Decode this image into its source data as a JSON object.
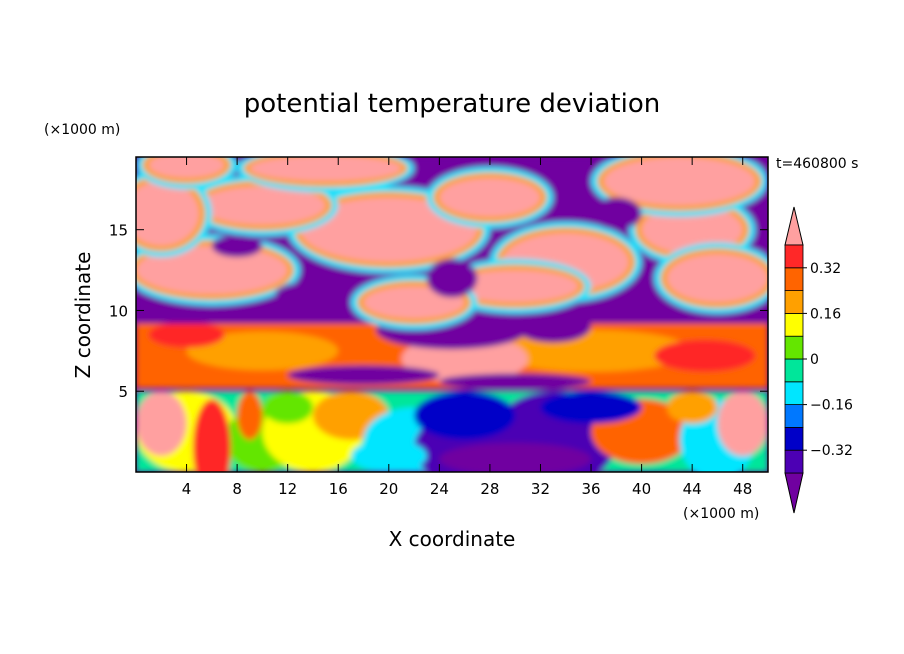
{
  "chart_data": {
    "type": "heatmap",
    "title": "potential temperature deviation",
    "xlabel": "X coordinate",
    "ylabel": "Z coordinate",
    "x_unit": "(×1000 m)",
    "y_unit": "(×1000 m)",
    "time_label": "t=460800 s",
    "xlim": [
      0,
      50
    ],
    "ylim": [
      0,
      19.5
    ],
    "x_ticks": [
      4,
      8,
      12,
      16,
      20,
      24,
      28,
      32,
      36,
      40,
      44,
      48
    ],
    "y_ticks": [
      5,
      10,
      15
    ],
    "colorbar": {
      "levels": [
        -0.4,
        -0.32,
        -0.24,
        -0.16,
        -0.08,
        0,
        0.08,
        0.16,
        0.24,
        0.32,
        0.4
      ],
      "labels": [
        "0.32",
        "0.16",
        "0",
        "−0.16",
        "−0.32"
      ],
      "label_values": [
        0.32,
        0.16,
        0,
        -0.16,
        -0.32
      ],
      "colors": [
        "#7000a0",
        "#4c00b4",
        "#0000c8",
        "#0078ff",
        "#00e6ff",
        "#00e69a",
        "#64e600",
        "#ffff00",
        "#ffa000",
        "#ff6400",
        "#ff2828",
        "#ffa0a0"
      ],
      "extend": "both"
    }
  }
}
